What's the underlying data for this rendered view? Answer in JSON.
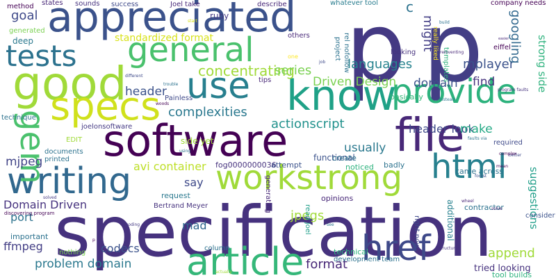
{
  "words": [
    {
      "text": "p",
      "color": "#443983"
    },
    {
      "text": "p",
      "color": "#433e85"
    },
    {
      "text": "specification",
      "color": "#46327e"
    },
    {
      "text": "software",
      "color": "#440154"
    },
    {
      "text": "appreciated",
      "color": "#3b528b"
    },
    {
      "text": "good",
      "color": "#a0da39"
    },
    {
      "text": "general",
      "color": "#4ac16d"
    },
    {
      "text": "know",
      "color": "#1fa187"
    },
    {
      "text": "provide",
      "color": "#2db27d"
    },
    {
      "text": "tests",
      "color": "#2c728e"
    },
    {
      "text": "use",
      "color": "#277f8e"
    },
    {
      "text": "specs",
      "color": "#d0e11c"
    },
    {
      "text": "file",
      "color": "#482878"
    },
    {
      "text": "writing",
      "color": "#31688e"
    },
    {
      "text": "workstrong",
      "color": "#a0da39"
    },
    {
      "text": "html",
      "color": "#27808e"
    },
    {
      "text": "article",
      "color": "#35b779"
    },
    {
      "text": "href",
      "color": "#3e4989"
    },
    {
      "text": "gem",
      "color": "#4ac16d"
    },
    {
      "text": "concentrating",
      "color": "#a0da39"
    },
    {
      "text": "complexities",
      "color": "#2a788e"
    },
    {
      "text": "actionscript",
      "color": "#21918c"
    },
    {
      "text": "languages",
      "color": "#26828e"
    },
    {
      "text": "mplayer",
      "color": "#3b528b"
    },
    {
      "text": "googling",
      "color": "#31688e"
    },
    {
      "text": "strong side",
      "color": "#2db27d"
    },
    {
      "text": "series",
      "color": "#7ad151"
    },
    {
      "text": "goal",
      "color": "#3e4989"
    },
    {
      "text": "deep",
      "color": "#2a788e"
    },
    {
      "text": "ruby",
      "color": "#443983"
    },
    {
      "text": "standardized format",
      "color": "#d8e219"
    },
    {
      "text": "Driven Design",
      "color": "#7ad151"
    },
    {
      "text": "domain",
      "color": "#3b528b"
    },
    {
      "text": "find",
      "color": "#46327e"
    },
    {
      "text": "header",
      "color": "#3b528b"
    },
    {
      "text": "header look",
      "color": "#3e4989"
    },
    {
      "text": "make",
      "color": "#22a884"
    },
    {
      "text": "usually",
      "color": "#2a788e"
    },
    {
      "text": "mjpeg",
      "color": "#414487"
    },
    {
      "text": "avi container",
      "color": "#bddf26"
    },
    {
      "text": "say",
      "color": "#3e4989"
    },
    {
      "text": "Domain Driven",
      "color": "#46327e"
    },
    {
      "text": "port",
      "color": "#2c728e"
    },
    {
      "text": "mad",
      "color": "#31688e"
    },
    {
      "text": "ffmpeg",
      "color": "#433e85"
    },
    {
      "text": "codecs",
      "color": "#3b528b"
    },
    {
      "text": "problem domain",
      "color": "#2a788e"
    },
    {
      "text": "jpegs",
      "color": "#a0da39"
    },
    {
      "text": "format",
      "color": "#482878"
    },
    {
      "text": "append",
      "color": "#a0da39"
    },
    {
      "text": "suggestions",
      "color": "#1f9e89"
    },
    {
      "text": "tried looking",
      "color": "#46327e"
    },
    {
      "text": "might",
      "color": "#433e85"
    },
    {
      "text": "c",
      "color": "#2c728e"
    },
    {
      "text": "states",
      "color": "#482878"
    },
    {
      "text": "method",
      "color": "#440154"
    },
    {
      "text": "sounds",
      "color": "#46327e"
    },
    {
      "text": "success",
      "color": "#3e4989"
    },
    {
      "text": "Joel take",
      "color": "#482878"
    },
    {
      "text": "describe",
      "color": "#482878"
    },
    {
      "text": "whatever tool",
      "color": "#287c8e"
    },
    {
      "text": "company needs",
      "color": "#440154"
    },
    {
      "text": "generated",
      "color": "#7ad151"
    },
    {
      "text": "others",
      "color": "#482878"
    },
    {
      "text": "project",
      "color": "#2c728e"
    },
    {
      "text": "rel nofollow",
      "color": "#2c728e"
    },
    {
      "text": "templates",
      "color": "#2db27d"
    },
    {
      "text": "really liked",
      "color": "#fde725"
    },
    {
      "text": "looking",
      "color": "#46327e"
    },
    {
      "text": "eiffel",
      "color": "#440154"
    },
    {
      "text": "tips",
      "color": "#482878"
    },
    {
      "text": "basically",
      "color": "#35b779"
    },
    {
      "text": "technique",
      "color": "#2c728e"
    },
    {
      "text": "joelonsoftware",
      "color": "#443983"
    },
    {
      "text": "side yet",
      "color": "#a0da39"
    },
    {
      "text": "Painless",
      "color": "#3e4989"
    },
    {
      "text": "EDIT",
      "color": "#a0da39"
    },
    {
      "text": "functional",
      "color": "#3b528b"
    },
    {
      "text": "required",
      "color": "#3e4989"
    },
    {
      "text": "documents",
      "color": "#2c728e"
    },
    {
      "text": "printed",
      "color": "#2c728e"
    },
    {
      "text": "fog0000000036",
      "color": "#46327e"
    },
    {
      "text": "attempt",
      "color": "#3b528b"
    },
    {
      "text": "create",
      "color": "#2c728e"
    },
    {
      "text": "noticed",
      "color": "#2db27d"
    },
    {
      "text": "badly",
      "color": "#2c728e"
    },
    {
      "text": "came across",
      "color": "#2c728e"
    },
    {
      "text": "opinions",
      "color": "#482878"
    },
    {
      "text": "request",
      "color": "#2a788e"
    },
    {
      "text": "Bertrand Meyer",
      "color": "#46327e"
    },
    {
      "text": "contractor",
      "color": "#2c728e"
    },
    {
      "text": "consider",
      "color": "#3b528b"
    },
    {
      "text": "additional",
      "color": "#27808e"
    },
    {
      "text": "right now",
      "color": "#3e4989"
    },
    {
      "text": "important",
      "color": "#2c728e"
    },
    {
      "text": "generating",
      "color": "#482878"
    },
    {
      "text": "read Joel",
      "color": "#1f9e89"
    },
    {
      "text": "column",
      "color": "#2c728e"
    },
    {
      "text": "nothing",
      "color": "#7ad151"
    },
    {
      "text": "technical",
      "color": "#2db27d"
    },
    {
      "text": "development team",
      "color": "#2c728e"
    },
    {
      "text": "tool builds",
      "color": "#2db27d"
    },
    {
      "text": "discovering program",
      "color": "#440154"
    },
    {
      "text": "wheel",
      "color": "#482878"
    },
    {
      "text": "solve",
      "color": "#482878"
    },
    {
      "text": "program faults",
      "color": "#46327e"
    },
    {
      "text": "easier",
      "color": "#482878"
    },
    {
      "text": "reinventing",
      "color": "#482878"
    },
    {
      "text": "instead",
      "color": "#2a788e"
    },
    {
      "text": "faults via",
      "color": "#2c728e"
    },
    {
      "text": "better",
      "color": "#3e4989"
    },
    {
      "text": "complex",
      "color": "#440154"
    },
    {
      "text": "mean",
      "color": "#440154"
    },
    {
      "text": "forest",
      "color": "#3b528b"
    },
    {
      "text": "structures",
      "color": "#46327e"
    },
    {
      "text": "actually",
      "color": "#a0da39"
    },
    {
      "text": "coding",
      "color": "#443983"
    },
    {
      "text": "solved",
      "color": "#443983"
    },
    {
      "text": "trouble",
      "color": "#2c728e"
    },
    {
      "text": "different",
      "color": "#3e4989"
    },
    {
      "text": "woods",
      "color": "#440154"
    },
    {
      "text": "using",
      "color": "#2c728e"
    },
    {
      "text": "see",
      "color": "#2c728e"
    },
    {
      "text": "one",
      "color": "#fde725"
    },
    {
      "text": "build",
      "color": "#2c728e"
    },
    {
      "text": "start",
      "color": "#d8e219"
    },
    {
      "text": "job",
      "color": "#3e4989"
    },
    {
      "text": "p",
      "color": "#440154"
    }
  ]
}
